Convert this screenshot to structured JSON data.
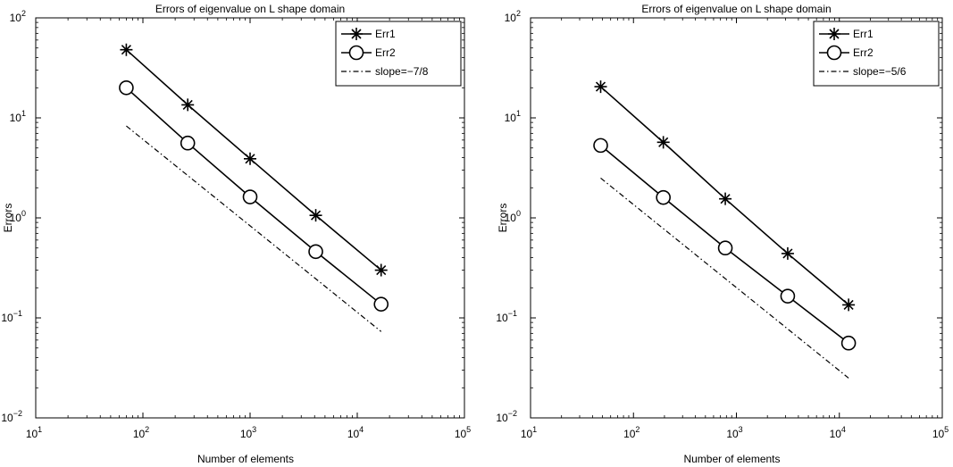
{
  "chart_data": [
    {
      "type": "line",
      "title": "Errors of eigenvalue on L shape domain",
      "xlabel": "Number of elements",
      "ylabel": "Errors",
      "xscale": "log",
      "yscale": "log",
      "xlim": [
        10,
        100000
      ],
      "ylim": [
        0.01,
        100
      ],
      "grid": false,
      "legend_position": "top-right",
      "x_ticks": [
        {
          "value": 10,
          "base": "10",
          "exp": "1"
        },
        {
          "value": 100,
          "base": "10",
          "exp": "2"
        },
        {
          "value": 1000,
          "base": "10",
          "exp": "3"
        },
        {
          "value": 10000,
          "base": "10",
          "exp": "4"
        },
        {
          "value": 100000,
          "base": "10",
          "exp": "5"
        }
      ],
      "y_ticks": [
        {
          "value": 0.01,
          "base": "10",
          "exp": "−2"
        },
        {
          "value": 0.1,
          "base": "10",
          "exp": "−1"
        },
        {
          "value": 1,
          "base": "10",
          "exp": "0"
        },
        {
          "value": 10,
          "base": "10",
          "exp": "1"
        },
        {
          "value": 100,
          "base": "10",
          "exp": "2"
        }
      ],
      "series": [
        {
          "name": "Err1",
          "marker": "asterisk",
          "style": "solid",
          "x": [
            70,
            262,
            1000,
            4100,
            16700
          ],
          "y": [
            48,
            13.5,
            3.9,
            1.06,
            0.3
          ]
        },
        {
          "name": "Err2",
          "marker": "circle",
          "style": "solid",
          "x": [
            70,
            262,
            1000,
            4100,
            16700
          ],
          "y": [
            20,
            5.6,
            1.62,
            0.46,
            0.137
          ]
        },
        {
          "name": "slope=−7/8",
          "marker": "none",
          "style": "dashdot",
          "x": [
            70,
            16700
          ],
          "y": [
            8.3,
            0.073
          ]
        }
      ]
    },
    {
      "type": "line",
      "title": "Errors of eigenvalue on L shape domain",
      "xlabel": "Number of elements",
      "ylabel": "Errors",
      "xscale": "log",
      "yscale": "log",
      "xlim": [
        10,
        100000
      ],
      "ylim": [
        0.01,
        100
      ],
      "grid": false,
      "legend_position": "top-right",
      "x_ticks": [
        {
          "value": 10,
          "base": "10",
          "exp": "1"
        },
        {
          "value": 100,
          "base": "10",
          "exp": "2"
        },
        {
          "value": 1000,
          "base": "10",
          "exp": "3"
        },
        {
          "value": 10000,
          "base": "10",
          "exp": "4"
        },
        {
          "value": 100000,
          "base": "10",
          "exp": "5"
        }
      ],
      "y_ticks": [
        {
          "value": 0.01,
          "base": "10",
          "exp": "−2"
        },
        {
          "value": 0.1,
          "base": "10",
          "exp": "−1"
        },
        {
          "value": 1,
          "base": "10",
          "exp": "0"
        },
        {
          "value": 10,
          "base": "10",
          "exp": "1"
        },
        {
          "value": 100,
          "base": "10",
          "exp": "2"
        }
      ],
      "series": [
        {
          "name": "Err1",
          "marker": "asterisk",
          "style": "solid",
          "x": [
            48,
            195,
            780,
            3150,
            12300
          ],
          "y": [
            20.5,
            5.7,
            1.55,
            0.44,
            0.135
          ]
        },
        {
          "name": "Err2",
          "marker": "circle",
          "style": "solid",
          "x": [
            48,
            195,
            780,
            3150,
            12300
          ],
          "y": [
            5.3,
            1.6,
            0.5,
            0.165,
            0.056
          ]
        },
        {
          "name": "slope=−5/6",
          "marker": "none",
          "style": "dashdot",
          "x": [
            48,
            12300
          ],
          "y": [
            2.5,
            0.025
          ]
        }
      ]
    }
  ]
}
